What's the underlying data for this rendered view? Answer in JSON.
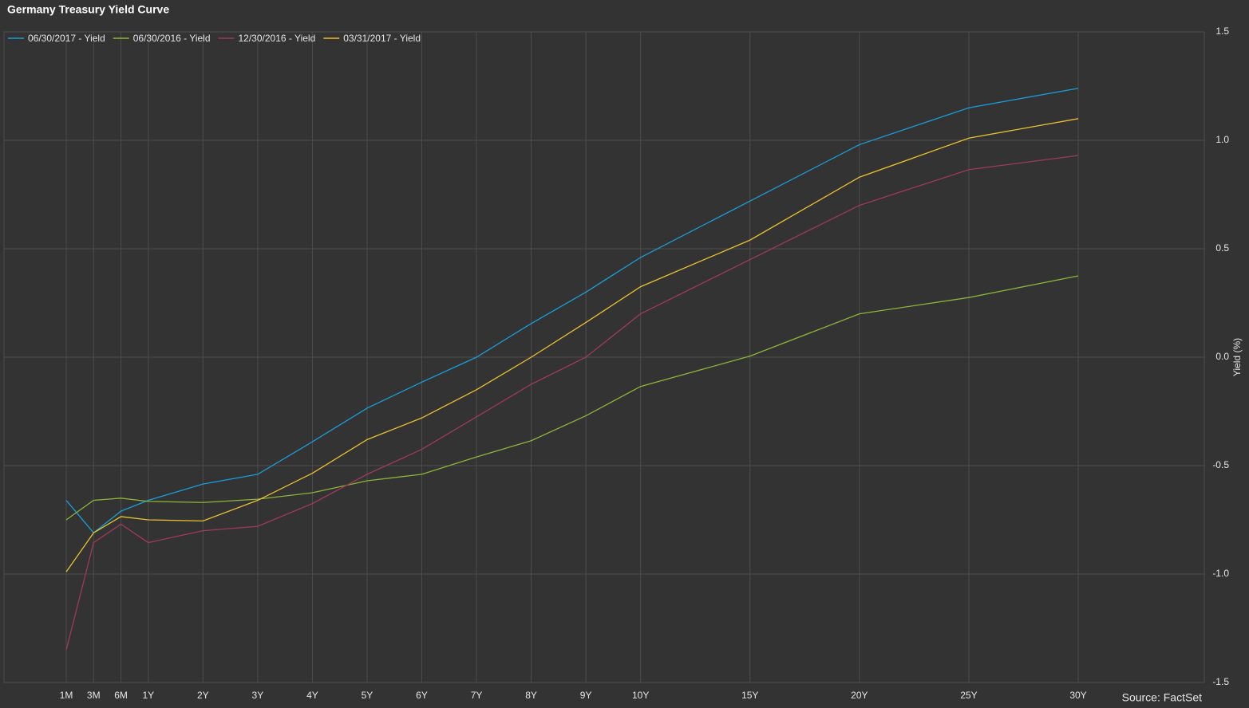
{
  "chart_data": {
    "type": "line",
    "title": "Germany Treasury Yield Curve",
    "categories": [
      "1M",
      "3M",
      "6M",
      "1Y",
      "2Y",
      "3Y",
      "4Y",
      "5Y",
      "6Y",
      "7Y",
      "8Y",
      "9Y",
      "10Y",
      "15Y",
      "20Y",
      "25Y",
      "30Y"
    ],
    "series": [
      {
        "name": "06/30/2017 - Yield",
        "color": "#1a9ed8",
        "values": [
          -0.66,
          -0.81,
          -0.71,
          -0.66,
          -0.585,
          -0.54,
          -0.39,
          -0.235,
          -0.115,
          0.0,
          0.155,
          0.3,
          0.46,
          0.72,
          0.98,
          1.15,
          1.24
        ]
      },
      {
        "name": "06/30/2016 - Yield",
        "color": "#8cb53a",
        "values": [
          -0.75,
          -0.66,
          -0.65,
          -0.665,
          -0.67,
          -0.655,
          -0.625,
          -0.57,
          -0.54,
          -0.46,
          -0.385,
          -0.27,
          -0.135,
          0.005,
          0.2,
          0.275,
          0.375
        ]
      },
      {
        "name": "12/30/2016 - Yield",
        "color": "#9e3a5a",
        "values": [
          -1.35,
          -0.855,
          -0.77,
          -0.855,
          -0.8,
          -0.78,
          -0.675,
          -0.54,
          -0.425,
          -0.275,
          -0.125,
          0.0,
          0.2,
          0.45,
          0.7,
          0.865,
          0.93
        ]
      },
      {
        "name": "03/31/2017 - Yield",
        "color": "#e8c22e",
        "values": [
          -0.99,
          -0.81,
          -0.735,
          -0.75,
          -0.755,
          -0.66,
          -0.535,
          -0.38,
          -0.28,
          -0.15,
          0.0,
          0.16,
          0.325,
          0.54,
          0.83,
          1.01,
          1.1
        ]
      }
    ],
    "ylabel": "Yield (%)",
    "ylim": [
      -1.5,
      1.5
    ],
    "yticks": [
      1.5,
      {
        "value": 1.0,
        "label": "1.0"
      },
      0.5,
      {
        "value": 0.0,
        "label": "0.0"
      },
      -0.5,
      {
        "value": -1.0,
        "label": "-1.0"
      },
      -1.5
    ],
    "grid": true,
    "legend": "top-left",
    "source": "Source: FactSet"
  }
}
